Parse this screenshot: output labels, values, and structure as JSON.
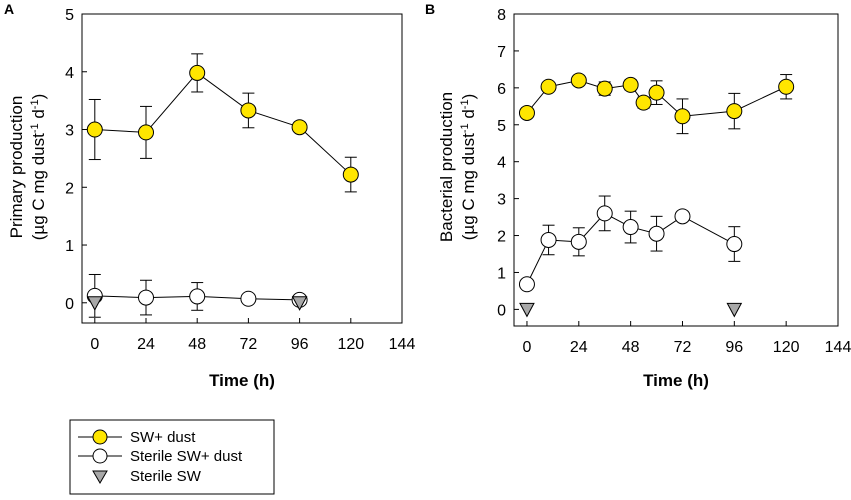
{
  "figure": {
    "legend": [
      {
        "label": "SW+ dust",
        "marker": "circle",
        "fill": "#FFE600"
      },
      {
        "label": "Sterile SW+ dust",
        "marker": "circle",
        "fill": "#FFFFFF"
      },
      {
        "label": "Sterile SW",
        "marker": "triangle-down",
        "fill": "#A8A8A8"
      }
    ]
  },
  "chart_data": [
    {
      "panel": "A",
      "type": "line",
      "xlabel": "Time (h)",
      "ylabel_line1": "Primary production",
      "ylabel_line2_parts": [
        "(µg C mg dust",
        "-1",
        " d",
        "-1",
        ")"
      ],
      "xlim": [
        -6,
        144
      ],
      "ylim": [
        -0.35,
        5
      ],
      "xticks": [
        0,
        24,
        48,
        72,
        96,
        120,
        144
      ],
      "yticks": [
        0,
        1,
        2,
        3,
        4,
        5
      ],
      "series": [
        {
          "name": "SW+ dust",
          "marker": "circle",
          "color": "#FFE600",
          "x": [
            0,
            24,
            48,
            72,
            96,
            120
          ],
          "y": [
            3.0,
            2.95,
            3.98,
            3.33,
            3.04,
            2.22
          ],
          "err": [
            0.52,
            0.45,
            0.33,
            0.3,
            0.08,
            0.3
          ]
        },
        {
          "name": "Sterile SW+ dust",
          "marker": "circle",
          "color": "#FFFFFF",
          "x": [
            0,
            24,
            48,
            72,
            96
          ],
          "y": [
            0.12,
            0.09,
            0.11,
            0.07,
            0.05
          ],
          "err": [
            0.37,
            0.3,
            0.24,
            0,
            0
          ]
        },
        {
          "name": "Sterile SW",
          "marker": "triangle-down",
          "color": "#A8A8A8",
          "x": [
            0,
            96
          ],
          "y": [
            0.0,
            0.0
          ],
          "err": [
            0,
            0
          ]
        }
      ]
    },
    {
      "panel": "B",
      "type": "line",
      "xlabel": "Time (h)",
      "ylabel_line1": "Bacterial production",
      "ylabel_line2_parts": [
        "(µg C mg dust",
        "-1",
        " d",
        "-1",
        ")"
      ],
      "xlim": [
        -6,
        144
      ],
      "ylim": [
        -0.45,
        8
      ],
      "xticks": [
        0,
        24,
        48,
        72,
        96,
        120,
        144
      ],
      "yticks": [
        0,
        1,
        2,
        3,
        4,
        5,
        6,
        7,
        8
      ],
      "series": [
        {
          "name": "SW+ dust",
          "marker": "circle",
          "color": "#FFE600",
          "x": [
            0,
            10,
            24,
            36,
            48,
            54,
            60,
            72,
            96,
            120
          ],
          "y": [
            5.32,
            6.03,
            6.2,
            5.98,
            6.08,
            5.6,
            5.87,
            5.23,
            5.37,
            6.03
          ],
          "err": [
            0.1,
            0.12,
            0.1,
            0.18,
            0.14,
            0.15,
            0.32,
            0.47,
            0.48,
            0.33
          ]
        },
        {
          "name": "Sterile SW+ dust",
          "marker": "circle",
          "color": "#FFFFFF",
          "x": [
            0,
            10,
            24,
            36,
            48,
            60,
            72,
            96
          ],
          "y": [
            0.68,
            1.88,
            1.83,
            2.6,
            2.23,
            2.05,
            2.52,
            1.77
          ],
          "err": [
            0,
            0.4,
            0.38,
            0.47,
            0.43,
            0.47,
            0.12,
            0.47
          ]
        },
        {
          "name": "Sterile SW",
          "marker": "triangle-down",
          "color": "#A8A8A8",
          "x": [
            0,
            96
          ],
          "y": [
            0.0,
            0.0
          ],
          "err": [
            0,
            0
          ]
        }
      ]
    }
  ]
}
